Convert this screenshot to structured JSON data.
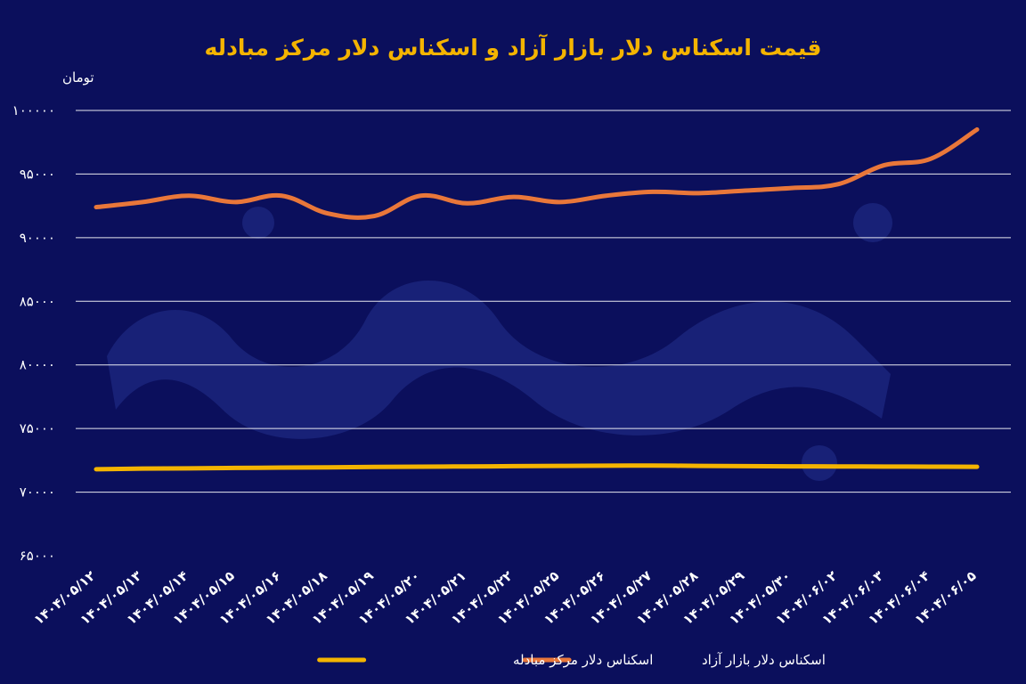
{
  "chart_data": {
    "type": "line",
    "title": "قیمت اسکناس دلار بازار آزاد و اسکناس دلار مرکز مبادله",
    "ylabel": "تومان",
    "xlabel": "",
    "ylim": [
      65000,
      100000
    ],
    "yticks": [
      {
        "value": 100000,
        "label": "100000"
      },
      {
        "value": 95000,
        "label": "95000"
      },
      {
        "value": 90000,
        "label": "90000"
      },
      {
        "value": 85000,
        "label": "85000"
      },
      {
        "value": 80000,
        "label": "80000"
      },
      {
        "value": 75000,
        "label": "75000"
      },
      {
        "value": 70000,
        "label": "70000"
      },
      {
        "value": 65000,
        "label": "65000"
      }
    ],
    "grid": true,
    "legend_position": "bottom",
    "categories": [
      "1404/05/12",
      "1404/05/13",
      "1404/05/14",
      "1404/05/15",
      "1404/05/16",
      "1404/05/18",
      "1404/05/19",
      "1404/05/20",
      "1404/05/21",
      "1404/05/22",
      "1404/05/25",
      "1404/05/26",
      "1404/05/27",
      "1404/05/28",
      "1404/05/29",
      "1404/05/30",
      "1404/06/02",
      "1404/06/03",
      "1404/06/04",
      "1404/06/05"
    ],
    "series": [
      {
        "name": "اسکناس دلار بازار آزاد",
        "color": "#e9773a",
        "values": [
          92400,
          92800,
          93300,
          92800,
          93300,
          91900,
          91700,
          93300,
          92700,
          93200,
          92800,
          93300,
          93600,
          93500,
          93700,
          93900,
          94200,
          95700,
          96200,
          98500
        ]
      },
      {
        "name": "اسکناس دلار مرکز مبادله",
        "color": "#f4b400",
        "values": [
          71800,
          71850,
          71870,
          71900,
          71930,
          71950,
          71980,
          72000,
          72020,
          72040,
          72060,
          72080,
          72090,
          72060,
          72040,
          72030,
          72020,
          72010,
          72000,
          71990
        ]
      }
    ]
  }
}
